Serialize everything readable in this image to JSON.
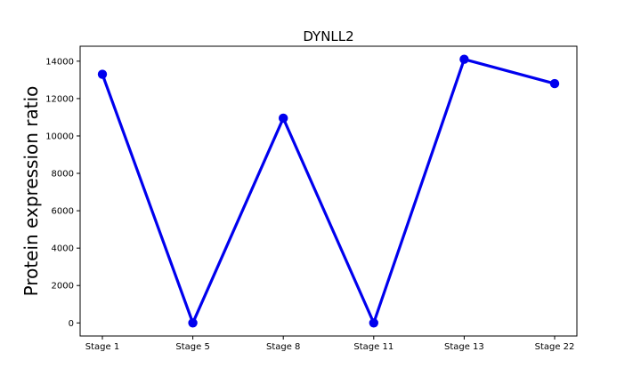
{
  "chart_data": {
    "type": "line",
    "title": "DYNLL2",
    "xlabel": "",
    "ylabel": "Protein expression ratio",
    "categories": [
      "Stage 1",
      "Stage 5",
      "Stage 8",
      "Stage 11",
      "Stage 13",
      "Stage 22"
    ],
    "series": [
      {
        "values": [
          13300,
          0,
          10950,
          0,
          14100,
          12800
        ],
        "color": "#0000ee"
      }
    ],
    "ylim": [
      -700,
      14800
    ],
    "yticks": [
      0,
      2000,
      4000,
      6000,
      8000,
      10000,
      12000,
      14000
    ],
    "ytick_labels": [
      "0",
      "2000",
      "4000",
      "6000",
      "8000",
      "10000",
      "12000",
      "14000"
    ],
    "grid": false,
    "legend": "none"
  }
}
